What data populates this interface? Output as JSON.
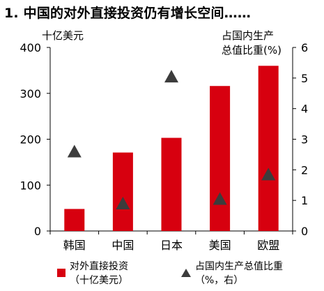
{
  "title": "1. 中国的对外直接投资仍有增长空间……",
  "left_unit": "十亿美元",
  "right_unit_line1": "占国内生产",
  "right_unit_line2": "总值比重(%)",
  "legend": {
    "bar_line1": "对外直接投资",
    "bar_line2": "（十亿美元）",
    "tri_line1": "占国内生产总值比重",
    "tri_line2": "（%，右）"
  },
  "colors": {
    "bar": "#d7000f",
    "marker": "#3c3c3c",
    "axis": "#000000"
  },
  "chart_data": {
    "type": "bar",
    "categories": [
      "韩国",
      "中国",
      "日本",
      "美国",
      "欧盟"
    ],
    "series": [
      {
        "name": "对外直接投资（十亿美元）",
        "type": "bar",
        "axis": "left",
        "values": [
          48,
          171,
          203,
          316,
          360
        ]
      },
      {
        "name": "占国内生产总值比重（%，右）",
        "type": "scatter",
        "marker": "triangle",
        "axis": "right",
        "values": [
          2.6,
          0.9,
          5.05,
          1.05,
          1.85
        ]
      }
    ],
    "ylim_left": [
      0,
      400
    ],
    "ylim_right": [
      0,
      6
    ],
    "yticks_left": [
      0,
      100,
      200,
      300,
      400
    ],
    "yticks_right": [
      0,
      1,
      2,
      3,
      4,
      5,
      6
    ],
    "grid": false,
    "legend_position": "bottom"
  }
}
